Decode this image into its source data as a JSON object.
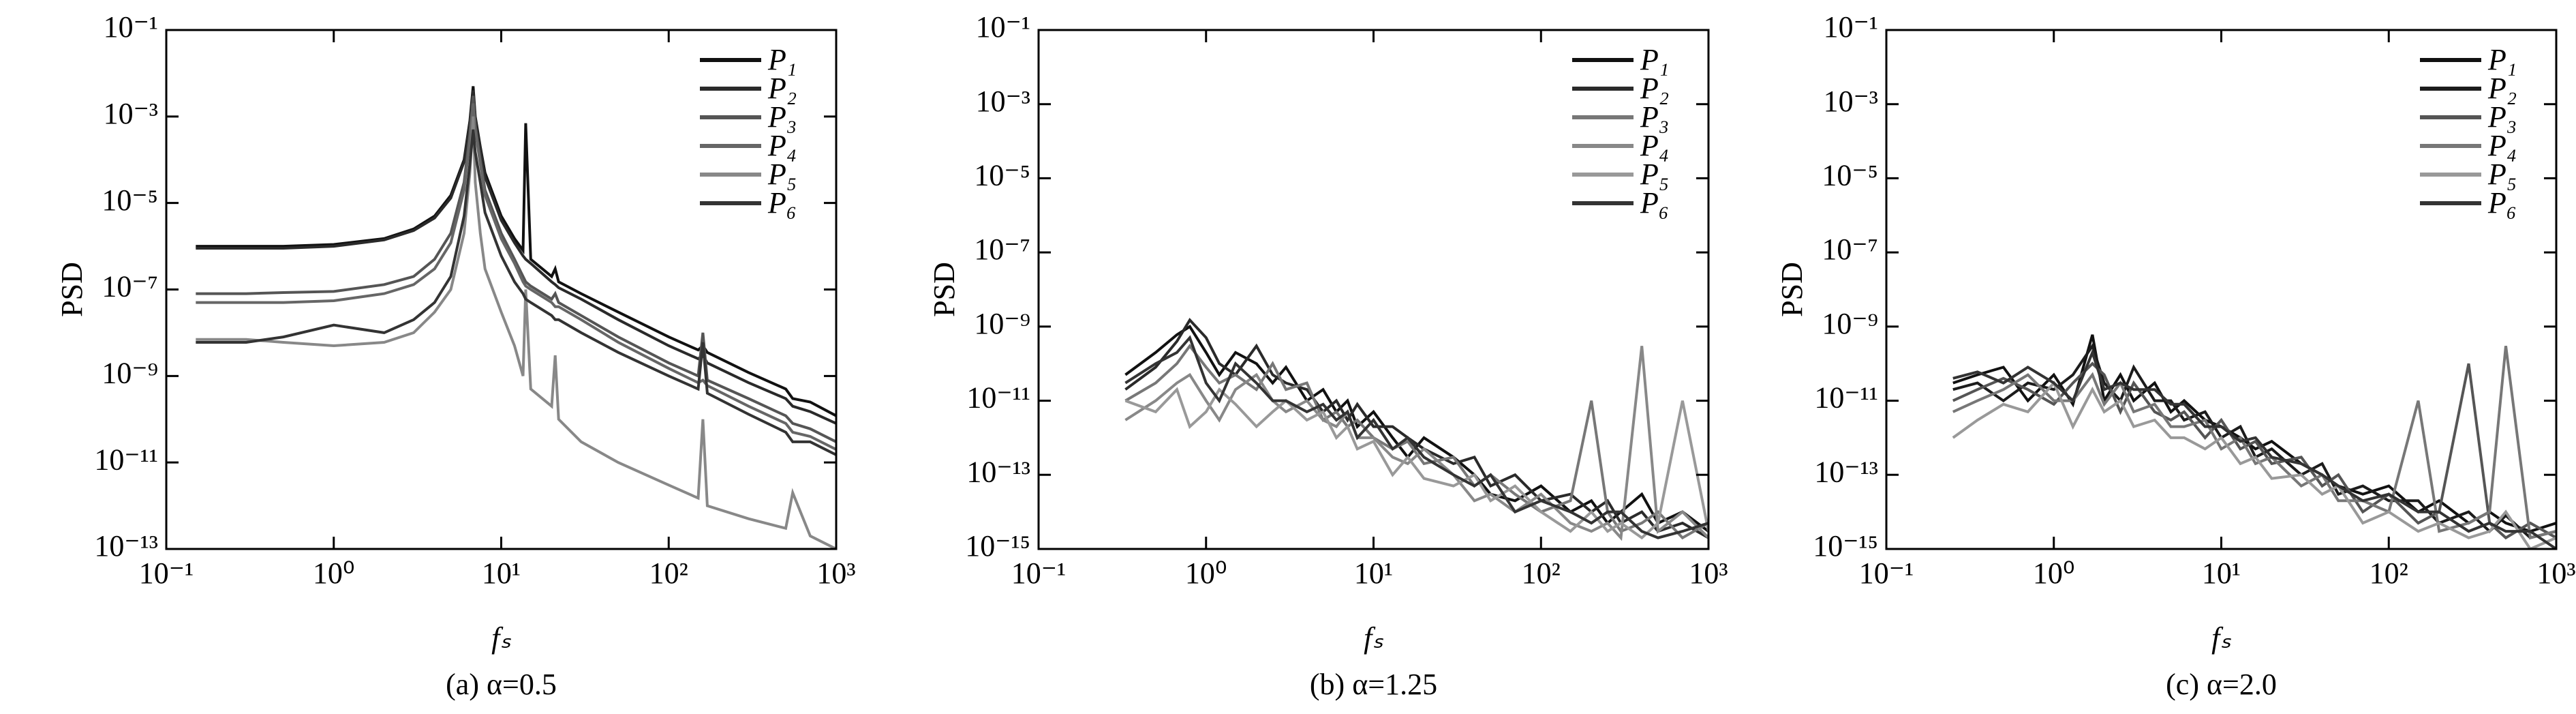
{
  "chart_data": [
    {
      "type": "line",
      "caption": "(a) α=0.5",
      "xlabel": "fₛ",
      "ylabel": "PSD",
      "log_x": true,
      "log_y": true,
      "xlim": [
        0.1,
        1000
      ],
      "ylim": [
        1e-13,
        0.1
      ],
      "xticks": [
        {
          "value": 0.1,
          "label": "10⁻¹"
        },
        {
          "value": 1,
          "label": "10⁰"
        },
        {
          "value": 10,
          "label": "10¹"
        },
        {
          "value": 100,
          "label": "10²"
        },
        {
          "value": 1000,
          "label": "10³"
        }
      ],
      "yticks": [
        {
          "value": 0.1,
          "label": "10⁻¹"
        },
        {
          "value": 0.001,
          "label": "10⁻³"
        },
        {
          "value": 1e-05,
          "label": "10⁻⁵"
        },
        {
          "value": 1e-07,
          "label": "10⁻⁷"
        },
        {
          "value": 1e-09,
          "label": "10⁻⁹"
        },
        {
          "value": 1e-11,
          "label": "10⁻¹¹"
        },
        {
          "value": 1e-13,
          "label": "10⁻¹³"
        }
      ],
      "x": [
        0.15,
        0.3,
        0.5,
        1,
        2,
        3,
        4,
        5,
        6,
        6.5,
        6.8,
        7,
        7.5,
        8,
        10,
        12,
        13.5,
        14,
        15,
        20,
        21,
        22,
        30,
        50,
        100,
        150,
        160,
        170,
        300,
        500,
        550,
        700,
        1000
      ],
      "series": [
        {
          "name": "P₁",
          "color": "#111111",
          "values": [
            1e-06,
            1e-06,
            1e-06,
            1.1e-06,
            1.5e-06,
            2.5e-06,
            5e-06,
            1.5e-05,
            0.0001,
            0.0008,
            0.005,
            0.001,
            0.0002,
            5e-05,
            5e-06,
            1.5e-06,
            8e-07,
            0.0007,
            5e-07,
            2e-07,
            3e-07,
            1.5e-07,
            8e-08,
            3e-08,
            8e-09,
            4e-09,
            5e-09,
            3.5e-09,
            1.2e-09,
            5e-10,
            3e-10,
            2.5e-10,
            1.2e-10
          ]
        },
        {
          "name": "P₂",
          "color": "#2a2a2a",
          "values": [
            9e-07,
            9e-07,
            9e-07,
            1e-06,
            1.4e-06,
            2.3e-06,
            4.5e-06,
            1.3e-05,
            9e-05,
            0.0007,
            0.004,
            0.0009,
            0.00018,
            4e-05,
            4e-06,
            1.2e-06,
            6e-07,
            5e-07,
            4e-07,
            1.5e-07,
            1.3e-07,
            1.1e-07,
            6e-08,
            2e-08,
            5e-09,
            2.5e-09,
            3e-09,
            2e-09,
            7e-10,
            3e-10,
            2e-10,
            1.5e-10,
            8e-11
          ]
        },
        {
          "name": "P₃",
          "color": "#555555",
          "values": [
            8e-08,
            8e-08,
            8.5e-08,
            9e-08,
            1.3e-07,
            2e-07,
            5e-07,
            2e-06,
            3e-05,
            0.0004,
            0.003,
            0.0006,
            0.0001,
            2e-05,
            2e-06,
            5e-07,
            2e-07,
            1.5e-07,
            1.2e-07,
            6e-08,
            8e-08,
            5e-08,
            2.5e-08,
            8e-09,
            2e-09,
            1e-09,
            1e-08,
            8e-10,
            3e-10,
            1.2e-10,
            8e-11,
            6e-11,
            3e-11
          ]
        },
        {
          "name": "P₄",
          "color": "#666666",
          "values": [
            5e-08,
            5e-08,
            5e-08,
            5.5e-08,
            8e-08,
            1.3e-07,
            3e-07,
            1.2e-06,
            2e-05,
            0.0003,
            0.002,
            0.0005,
            8e-05,
            1.5e-05,
            1.5e-06,
            4e-07,
            1.5e-07,
            1.2e-07,
            1e-07,
            5e-08,
            4e-08,
            4e-08,
            2e-08,
            6e-09,
            1.5e-09,
            7e-10,
            8e-10,
            6e-10,
            2e-10,
            8e-11,
            5e-11,
            4e-11,
            2e-11
          ]
        },
        {
          "name": "P₅",
          "color": "#888888",
          "values": [
            7e-09,
            7e-09,
            6e-09,
            5e-09,
            6e-09,
            1e-08,
            3e-08,
            1e-07,
            2e-06,
            5e-05,
            0.001,
            3e-05,
            2e-06,
            3e-07,
            3e-08,
            5e-09,
            1e-09,
            1e-07,
            5e-10,
            2e-10,
            3e-09,
            1e-10,
            3e-11,
            1e-11,
            3e-12,
            1.5e-12,
            1e-10,
            1e-12,
            5e-13,
            3e-13,
            2e-12,
            2e-13,
            1e-13
          ]
        },
        {
          "name": "P₆",
          "color": "#333333",
          "values": [
            6e-09,
            6e-09,
            8e-09,
            1.5e-08,
            1e-08,
            2e-08,
            5e-08,
            2e-07,
            5e-06,
            8e-05,
            0.0005,
            0.00015,
            3e-05,
            6e-06,
            6e-07,
            1.5e-07,
            8e-08,
            6e-08,
            5e-08,
            2.5e-08,
            2e-08,
            2e-08,
            1e-08,
            3.5e-09,
            1e-09,
            5e-10,
            6e-09,
            4e-10,
            1.3e-10,
            5e-11,
            3e-11,
            3e-11,
            1.5e-11
          ]
        }
      ]
    },
    {
      "type": "line",
      "caption": "(b) α=1.25",
      "xlabel": "fₛ",
      "ylabel": "PSD",
      "log_x": true,
      "log_y": true,
      "xlim": [
        0.1,
        1000
      ],
      "ylim": [
        1e-15,
        0.1
      ],
      "xticks": [
        {
          "value": 0.1,
          "label": "10⁻¹"
        },
        {
          "value": 1,
          "label": "10⁰"
        },
        {
          "value": 10,
          "label": "10¹"
        },
        {
          "value": 100,
          "label": "10²"
        },
        {
          "value": 1000,
          "label": "10³"
        }
      ],
      "yticks": [
        {
          "value": 0.1,
          "label": "10⁻¹"
        },
        {
          "value": 0.001,
          "label": "10⁻³"
        },
        {
          "value": 1e-05,
          "label": "10⁻⁵"
        },
        {
          "value": 1e-07,
          "label": "10⁻⁷"
        },
        {
          "value": 1e-09,
          "label": "10⁻⁹"
        },
        {
          "value": 1e-11,
          "label": "10⁻¹¹"
        },
        {
          "value": 1e-13,
          "label": "10⁻¹³"
        },
        {
          "value": 1e-15,
          "label": "10⁻¹⁵"
        }
      ],
      "x": [
        0.33,
        0.5,
        0.67,
        0.8,
        1,
        1.2,
        1.5,
        2,
        2.5,
        3,
        4,
        5,
        6,
        7,
        8,
        10,
        13,
        16,
        20,
        30,
        40,
        50,
        70,
        100,
        150,
        200,
        250,
        300,
        400,
        500,
        700,
        1000
      ],
      "series": [
        {
          "name": "P₁",
          "color": "#111111",
          "values": [
            5e-11,
            2e-10,
            6e-10,
            1e-09,
            2e-10,
            5e-11,
            2e-10,
            1e-10,
            3e-11,
            8e-11,
            1e-11,
            2e-11,
            5e-12,
            1e-11,
            2e-12,
            5e-12,
            1e-12,
            3e-13,
            1e-12,
            3e-13,
            1e-13,
            3e-14,
            2e-14,
            5e-14,
            1e-14,
            2e-14,
            5e-15,
            1e-14,
            3e-14,
            5e-15,
            1e-14,
            3e-15
          ]
        },
        {
          "name": "P₂",
          "color": "#2a2a2a",
          "values": [
            2e-11,
            8e-11,
            4e-10,
            1.5e-09,
            5e-10,
            1e-10,
            5e-11,
            3e-10,
            5e-11,
            3e-11,
            2e-11,
            5e-12,
            1e-11,
            3e-12,
            8e-12,
            2e-12,
            2e-12,
            1e-12,
            5e-13,
            2e-13,
            3e-13,
            5e-14,
            1e-13,
            2e-14,
            3e-14,
            1e-14,
            2e-14,
            5e-15,
            1e-14,
            3e-15,
            5e-15,
            2e-15
          ]
        },
        {
          "name": "P₃",
          "color": "#777777",
          "values": [
            1e-11,
            3e-11,
            1e-10,
            3e-10,
            8e-11,
            3e-11,
            5e-11,
            2e-11,
            1e-10,
            2e-11,
            3e-11,
            3e-12,
            5e-12,
            2e-12,
            3e-12,
            1e-12,
            5e-13,
            8e-13,
            2e-13,
            3e-13,
            5e-14,
            1e-13,
            3e-14,
            1e-14,
            2e-14,
            1e-11,
            1e-14,
            3e-15,
            5e-15,
            1e-14,
            2e-15,
            5e-15
          ]
        },
        {
          "name": "P₄",
          "color": "#888888",
          "values": [
            3e-12,
            1e-11,
            3e-11,
            5e-11,
            1e-11,
            3e-12,
            2e-11,
            5e-11,
            1e-11,
            5e-12,
            1e-11,
            3e-12,
            2e-12,
            5e-12,
            1e-12,
            1e-12,
            3e-13,
            2e-13,
            5e-13,
            1e-13,
            2e-14,
            3e-14,
            1e-14,
            3e-14,
            5e-15,
            3e-15,
            5e-15,
            2e-15,
            3e-10,
            3e-15,
            1e-14,
            2e-15
          ]
        },
        {
          "name": "P₅",
          "color": "#999999",
          "values": [
            1e-11,
            5e-12,
            2e-11,
            2e-12,
            5e-12,
            2e-11,
            8e-12,
            2e-12,
            5e-12,
            1e-11,
            3e-12,
            5e-12,
            1e-12,
            2e-12,
            5e-13,
            8e-13,
            1e-13,
            3e-13,
            8e-14,
            5e-14,
            1e-13,
            2e-14,
            5e-14,
            1e-14,
            3e-15,
            1e-14,
            3e-15,
            5e-15,
            2e-15,
            5e-15,
            1e-11,
            3e-15
          ]
        },
        {
          "name": "P₆",
          "color": "#333333",
          "values": [
            3e-11,
            1e-10,
            2e-10,
            5e-10,
            3e-11,
            1e-11,
            1e-10,
            3e-11,
            1e-11,
            1e-11,
            5e-12,
            8e-12,
            3e-12,
            5e-12,
            1e-12,
            3e-12,
            5e-13,
            1e-12,
            3e-13,
            1e-13,
            5e-14,
            1e-13,
            1e-14,
            2e-14,
            1e-14,
            5e-15,
            1e-14,
            1e-14,
            3e-15,
            2e-15,
            3e-15,
            5e-15
          ]
        }
      ]
    },
    {
      "type": "line",
      "caption": "(c) α=2.0",
      "xlabel": "fₛ",
      "ylabel": "PSD",
      "log_x": true,
      "log_y": true,
      "xlim": [
        0.1,
        1000
      ],
      "ylim": [
        1e-15,
        0.1
      ],
      "xticks": [
        {
          "value": 0.1,
          "label": "10⁻¹"
        },
        {
          "value": 1,
          "label": "10⁰"
        },
        {
          "value": 10,
          "label": "10¹"
        },
        {
          "value": 100,
          "label": "10²"
        },
        {
          "value": 1000,
          "label": "10³"
        }
      ],
      "yticks": [
        {
          "value": 0.1,
          "label": "10⁻¹"
        },
        {
          "value": 0.001,
          "label": "10⁻³"
        },
        {
          "value": 1e-05,
          "label": "10⁻⁵"
        },
        {
          "value": 1e-07,
          "label": "10⁻⁷"
        },
        {
          "value": 1e-09,
          "label": "10⁻⁹"
        },
        {
          "value": 1e-11,
          "label": "10⁻¹¹"
        },
        {
          "value": 1e-13,
          "label": "10⁻¹³"
        },
        {
          "value": 1e-15,
          "label": "10⁻¹⁵"
        }
      ],
      "x": [
        0.25,
        0.35,
        0.5,
        0.7,
        1,
        1.3,
        1.7,
        2,
        2.5,
        3,
        4,
        5,
        6,
        8,
        10,
        13,
        16,
        20,
        30,
        40,
        50,
        70,
        100,
        150,
        200,
        300,
        400,
        500,
        700,
        1000
      ],
      "series": [
        {
          "name": "P₁",
          "color": "#111111",
          "values": [
            3e-11,
            5e-11,
            8e-11,
            1e-11,
            5e-11,
            8e-12,
            6e-10,
            1e-11,
            5e-11,
            1e-11,
            3e-11,
            5e-12,
            1e-11,
            3e-12,
            2e-12,
            1e-12,
            5e-13,
            8e-13,
            2e-13,
            1e-13,
            5e-14,
            3e-14,
            5e-14,
            1e-14,
            2e-14,
            5e-15,
            1e-14,
            5e-15,
            3e-15,
            5e-15
          ]
        },
        {
          "name": "P₂",
          "color": "#1c1c1c",
          "values": [
            2e-11,
            3e-11,
            1e-11,
            3e-11,
            2e-11,
            5e-11,
            3e-10,
            3e-11,
            1e-11,
            8e-11,
            1e-11,
            1e-11,
            3e-12,
            5e-12,
            1e-12,
            2e-12,
            3e-13,
            5e-13,
            1e-13,
            2e-13,
            3e-14,
            5e-14,
            2e-14,
            2e-14,
            5e-15,
            1e-14,
            3e-15,
            8e-15,
            2e-15,
            3e-15
          ]
        },
        {
          "name": "P₃",
          "color": "#555555",
          "values": [
            1e-11,
            2e-11,
            4e-11,
            2e-11,
            8e-12,
            3e-11,
            1e-10,
            5e-11,
            5e-12,
            3e-11,
            5e-12,
            3e-12,
            5e-12,
            1e-12,
            3e-12,
            5e-13,
            8e-13,
            2e-13,
            3e-13,
            5e-14,
            1e-13,
            1e-14,
            3e-14,
            5e-15,
            1e-14,
            1e-10,
            5e-15,
            2e-15,
            5e-15,
            2e-15
          ]
        },
        {
          "name": "P₄",
          "color": "#777777",
          "values": [
            5e-12,
            1e-11,
            2e-11,
            5e-11,
            1e-11,
            1e-11,
            5e-11,
            8e-12,
            3e-11,
            5e-12,
            8e-12,
            2e-12,
            2e-12,
            3e-12,
            5e-13,
            1e-12,
            2e-13,
            3e-13,
            5e-14,
            1e-13,
            2e-14,
            2e-14,
            1e-14,
            1e-11,
            3e-15,
            5e-15,
            1e-14,
            3e-10,
            2e-15,
            3e-15
          ]
        },
        {
          "name": "P₅",
          "color": "#999999",
          "values": [
            1e-12,
            3e-12,
            8e-12,
            5e-12,
            3e-11,
            2e-12,
            2e-11,
            5e-12,
            1e-11,
            2e-12,
            3e-12,
            1e-12,
            1e-12,
            5e-13,
            1e-12,
            2e-13,
            3e-13,
            8e-14,
            1e-13,
            3e-14,
            5e-14,
            5e-15,
            1e-14,
            3e-15,
            5e-15,
            2e-15,
            3e-15,
            1e-14,
            1e-15,
            2e-15
          ]
        },
        {
          "name": "P₆",
          "color": "#333333",
          "values": [
            4e-11,
            6e-11,
            3e-11,
            8e-11,
            3e-11,
            1e-11,
            2e-10,
            2e-11,
            3e-11,
            2e-11,
            2e-11,
            8e-12,
            8e-12,
            2e-12,
            2e-12,
            8e-13,
            1e-12,
            3e-13,
            2e-13,
            1e-13,
            5e-14,
            2e-14,
            3e-14,
            1e-14,
            1e-14,
            3e-15,
            5e-15,
            3e-15,
            3e-15,
            1e-15
          ]
        }
      ]
    }
  ]
}
